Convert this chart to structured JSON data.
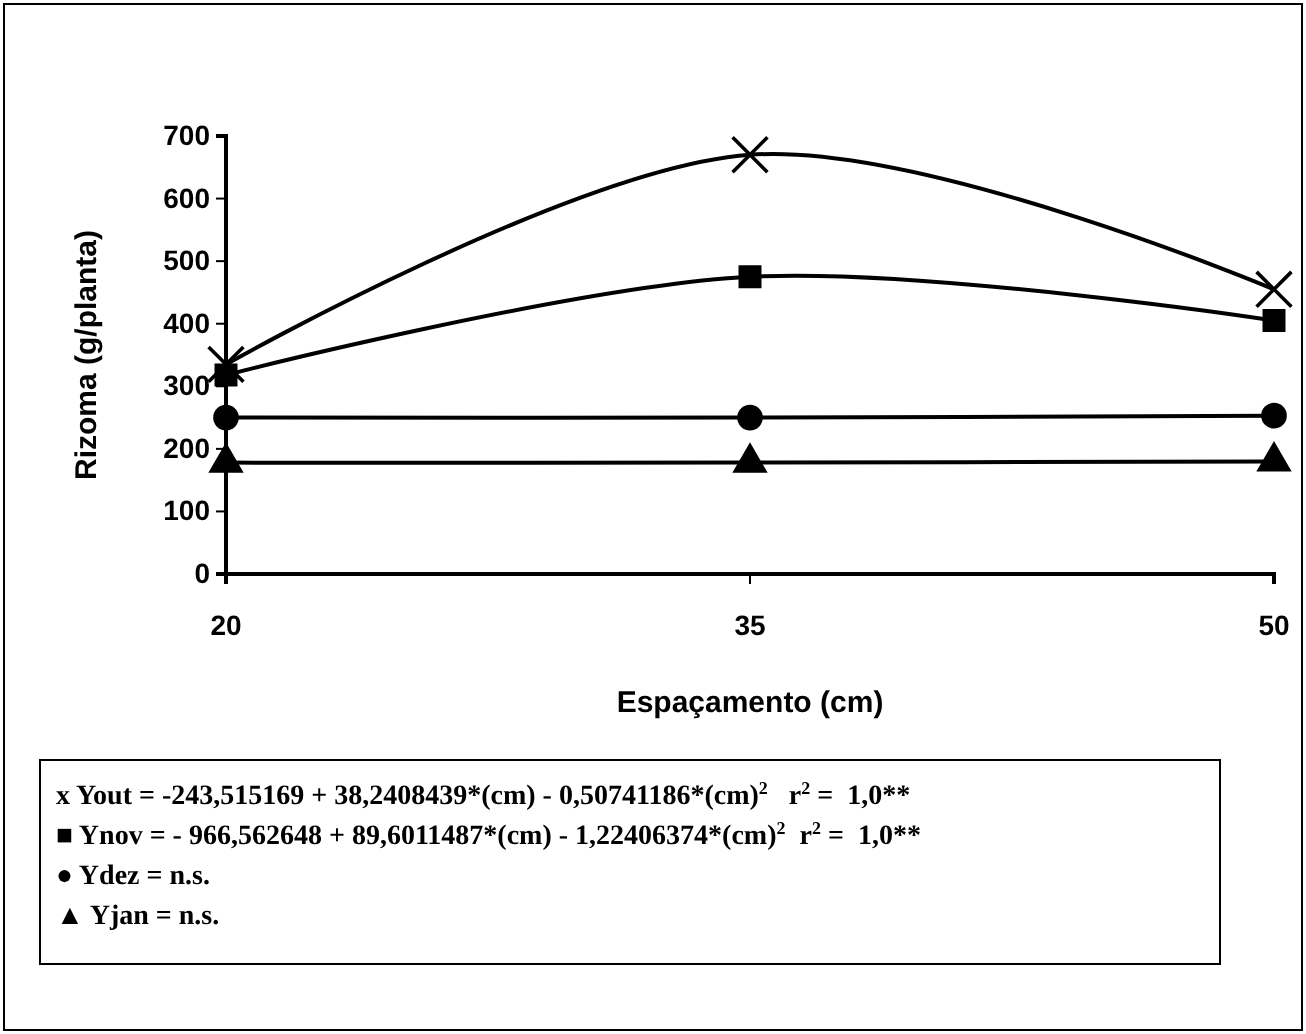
{
  "chart_data": {
    "type": "line",
    "xlabel": "Espaçamento (cm)",
    "ylabel": "Rizoma (g/planta)",
    "x": [
      20,
      35,
      50
    ],
    "xlim": [
      20,
      50
    ],
    "xticks": [
      20,
      35,
      50
    ],
    "ylim": [
      0,
      700
    ],
    "yticks": [
      0,
      100,
      200,
      300,
      400,
      500,
      600,
      700
    ],
    "grid": false,
    "line_style": "solid",
    "series": [
      {
        "color": "#000000",
        "marker": "cross",
        "values": [
          335,
          670,
          455
        ]
      },
      {
        "color": "#000000",
        "marker": "square",
        "values": [
          318,
          475,
          405
        ]
      },
      {
        "color": "#000000",
        "marker": "circle",
        "values": [
          250,
          250,
          253
        ]
      },
      {
        "color": "#000000",
        "marker": "triangle",
        "values": [
          178,
          178,
          180
        ]
      }
    ],
    "annotations": [
      "x Yout = -243,515169 + 38,2408439*(cm) - 0,50741186*(cm)$^{2}$   r$^{2}$ =  1,0**",
      "■ Ynov = - 966,562648 + 89,6011487*(cm) - 1,22406374*(cm)$^{2}$  r$^{2}$ =  1,0**",
      "● Ydez = n.s.",
      "▲ Yjan = n.s."
    ]
  }
}
